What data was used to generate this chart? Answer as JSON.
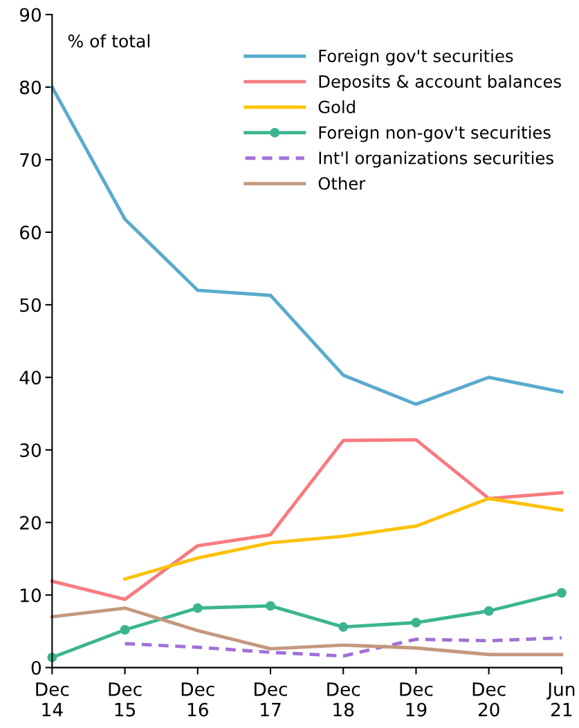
{
  "chart_data": {
    "type": "line",
    "ylabel": "% of total",
    "categories": [
      "Dec\n14",
      "Dec\n15",
      "Dec\n16",
      "Dec\n17",
      "Dec\n18",
      "Dec\n19",
      "Dec\n20",
      "Jun\n21"
    ],
    "series": [
      {
        "name": "Foreign gov't securities",
        "color": "#5aaacd",
        "values": [
          80,
          61.8,
          52,
          51.3,
          40.3,
          36.3,
          40,
          38
        ]
      },
      {
        "name": "Deposits & account balances",
        "color": "#f77b80",
        "values": [
          11.9,
          9.4,
          16.8,
          18.3,
          31.3,
          31.4,
          23.3,
          24.1
        ]
      },
      {
        "name": "Gold",
        "color": "#fbc20a",
        "values": [
          null,
          12.2,
          15.1,
          17.2,
          18.1,
          19.5,
          23.3,
          21.7
        ]
      },
      {
        "name": "Foreign non-gov't securities",
        "color": "#3bb58f",
        "marker": "circle",
        "values": [
          1.4,
          5.2,
          8.2,
          8.5,
          5.6,
          6.2,
          7.8,
          10.3
        ]
      },
      {
        "name": "Int'l organizations securities",
        "color": "#a070d8",
        "line_style": "dashed",
        "values": [
          null,
          3.3,
          2.8,
          2.1,
          1.6,
          3.9,
          3.7,
          4.1
        ]
      },
      {
        "name": "Other",
        "color": "#c4987e",
        "values": [
          7.0,
          8.2,
          5.1,
          2.6,
          3.1,
          2.7,
          1.8,
          1.8
        ]
      }
    ],
    "ylim": [
      0,
      90
    ],
    "yticks": [
      0,
      10,
      20,
      30,
      40,
      50,
      60,
      70,
      80,
      90
    ],
    "grid": false,
    "legend": "top right"
  }
}
